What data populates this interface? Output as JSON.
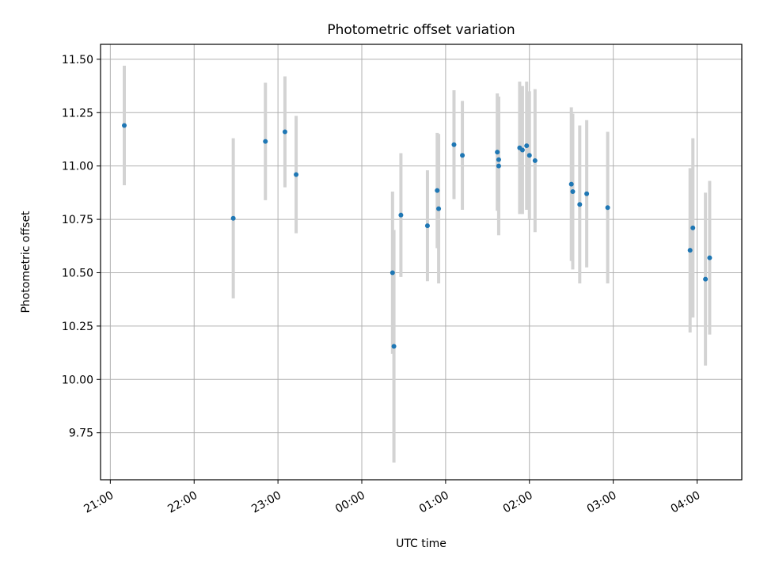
{
  "chart_data": {
    "type": "scatter",
    "title": "Photometric offset variation",
    "xlabel": "UTC time",
    "ylabel": "Photometric offset",
    "x_axis_type": "time",
    "x_start_day": "day 1",
    "xlim": [
      "20:53",
      "04:32"
    ],
    "ylim": [
      9.53,
      11.57
    ],
    "x_ticks": [
      {
        "time": "21:00",
        "label": "21:00"
      },
      {
        "time": "22:00",
        "label": "22:00"
      },
      {
        "time": "23:00",
        "label": "23:00"
      },
      {
        "time": "00:00",
        "label": "00:00"
      },
      {
        "time": "01:00",
        "label": "01:00"
      },
      {
        "time": "02:00",
        "label": "02:00"
      },
      {
        "time": "03:00",
        "label": "03:00"
      },
      {
        "time": "04:00",
        "label": "04:00"
      }
    ],
    "y_ticks": [
      {
        "value": 9.75,
        "label": "9.75"
      },
      {
        "value": 10.0,
        "label": "10.00"
      },
      {
        "value": 10.25,
        "label": "10.25"
      },
      {
        "value": 10.5,
        "label": "10.50"
      },
      {
        "value": 10.75,
        "label": "10.75"
      },
      {
        "value": 11.0,
        "label": "11.00"
      },
      {
        "value": 11.25,
        "label": "11.25"
      },
      {
        "value": 11.5,
        "label": "11.50"
      }
    ],
    "grid": true,
    "point_color": "#1f77b4",
    "errorbar_color": "#d3d3d3",
    "points": [
      {
        "time": "21:10",
        "y": 11.19,
        "err": 0.28
      },
      {
        "time": "22:28",
        "y": 10.755,
        "err": 0.375
      },
      {
        "time": "22:51",
        "y": 11.115,
        "err": 0.275
      },
      {
        "time": "23:05",
        "y": 11.16,
        "err": 0.26
      },
      {
        "time": "23:13",
        "y": 10.96,
        "err": 0.275
      },
      {
        "time": "00:22",
        "y": 10.5,
        "err": 0.38
      },
      {
        "time": "00:23",
        "y": 10.155,
        "err": 0.545
      },
      {
        "time": "00:28",
        "y": 10.77,
        "err": 0.29
      },
      {
        "time": "00:47",
        "y": 10.72,
        "err": 0.26
      },
      {
        "time": "00:54",
        "y": 10.885,
        "err": 0.27
      },
      {
        "time": "00:55",
        "y": 10.8,
        "err": 0.35
      },
      {
        "time": "01:06",
        "y": 11.1,
        "err": 0.255
      },
      {
        "time": "01:12",
        "y": 11.05,
        "err": 0.255
      },
      {
        "time": "01:37",
        "y": 11.065,
        "err": 0.275
      },
      {
        "time": "01:38",
        "y": 11.03,
        "err": 0.29
      },
      {
        "time": "01:38",
        "y": 11.0,
        "err": 0.325
      },
      {
        "time": "01:53",
        "y": 11.085,
        "err": 0.31
      },
      {
        "time": "01:55",
        "y": 11.075,
        "err": 0.3
      },
      {
        "time": "01:58",
        "y": 11.095,
        "err": 0.3
      },
      {
        "time": "02:00",
        "y": 11.05,
        "err": 0.3
      },
      {
        "time": "02:04",
        "y": 11.025,
        "err": 0.335
      },
      {
        "time": "02:30",
        "y": 10.915,
        "err": 0.36
      },
      {
        "time": "02:31",
        "y": 10.88,
        "err": 0.365
      },
      {
        "time": "02:36",
        "y": 10.82,
        "err": 0.37
      },
      {
        "time": "02:41",
        "y": 10.87,
        "err": 0.345
      },
      {
        "time": "02:56",
        "y": 10.805,
        "err": 0.355
      },
      {
        "time": "03:55",
        "y": 10.605,
        "err": 0.385
      },
      {
        "time": "03:57",
        "y": 10.71,
        "err": 0.42
      },
      {
        "time": "04:06",
        "y": 10.47,
        "err": 0.405
      },
      {
        "time": "04:09",
        "y": 10.57,
        "err": 0.36
      }
    ]
  }
}
